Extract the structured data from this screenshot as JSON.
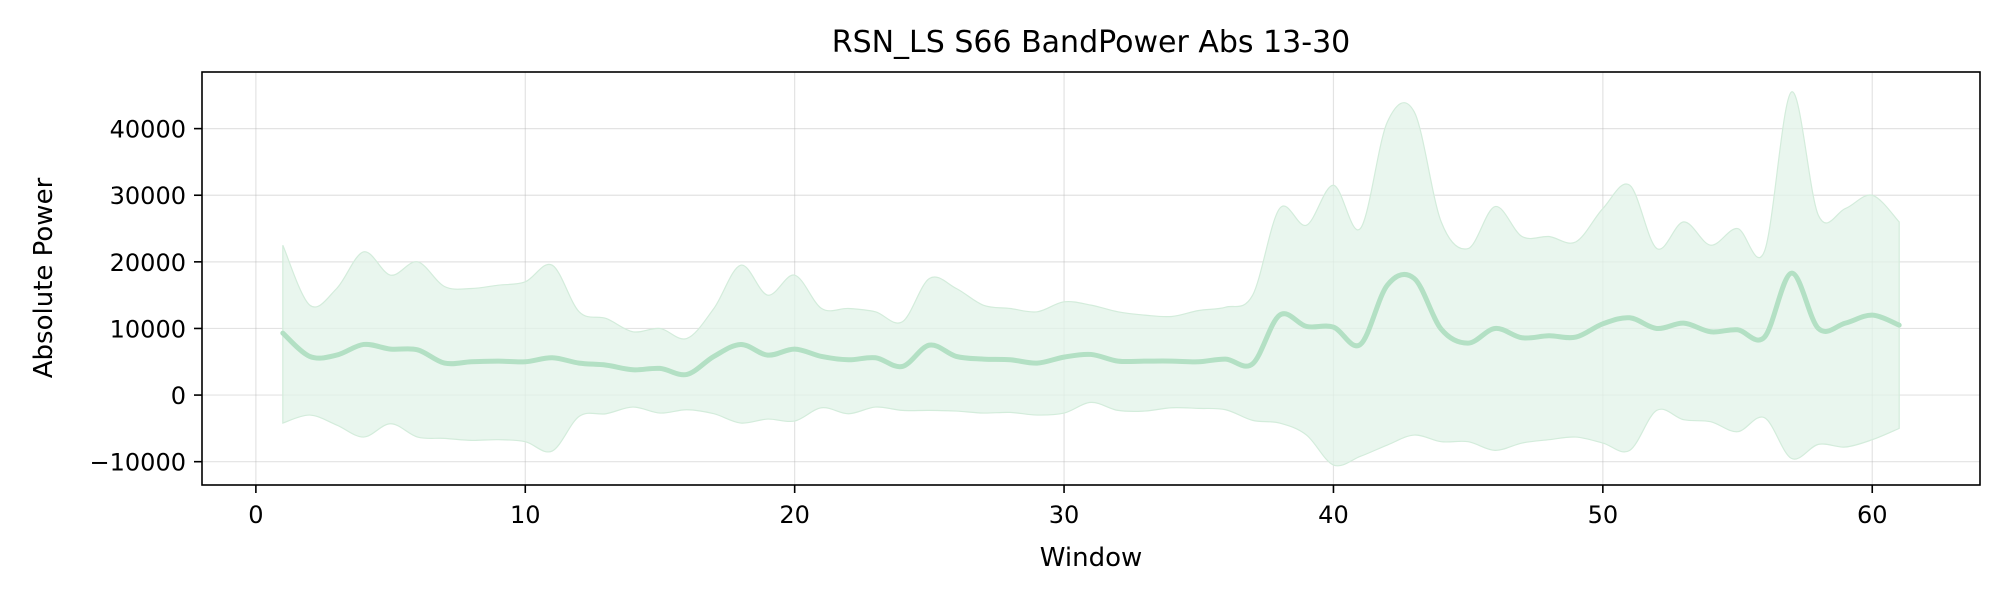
{
  "chart_data": {
    "type": "line",
    "title": "RSN_LS S66 BandPower Abs 13-30",
    "xlabel": "Window",
    "ylabel": "Absolute Power",
    "xlim": [
      -2,
      64
    ],
    "ylim": [
      -13500,
      48500
    ],
    "xticks": [
      0,
      10,
      20,
      30,
      40,
      50,
      60
    ],
    "yticks": [
      -10000,
      0,
      10000,
      20000,
      30000,
      40000
    ],
    "ytick_labels": [
      "−10000",
      "0",
      "10000",
      "20000",
      "30000",
      "40000"
    ],
    "grid": true,
    "colors": {
      "line": "#b3e0c4",
      "band": "#e2f3e8",
      "band_edge": "#d3ecdb"
    },
    "series": [
      {
        "x": [
          1,
          2,
          3,
          4,
          5,
          6,
          7,
          8,
          9,
          10,
          11,
          12,
          13,
          14,
          15,
          16,
          17,
          18,
          19,
          20,
          21,
          22,
          23,
          24,
          25,
          26,
          27,
          28,
          29,
          30,
          31,
          32,
          33,
          34,
          35,
          36,
          37,
          38,
          39,
          40,
          41,
          42,
          43,
          44,
          45,
          46,
          47,
          48,
          49,
          50,
          51,
          52,
          53,
          54,
          55,
          56,
          57,
          58,
          59,
          60,
          61
        ],
        "mean": [
          9300,
          5800,
          6000,
          7600,
          6900,
          6800,
          4800,
          5000,
          5100,
          5000,
          5600,
          4800,
          4500,
          3800,
          4000,
          3100,
          5800,
          7600,
          6000,
          6900,
          5800,
          5300,
          5600,
          4300,
          7500,
          5800,
          5400,
          5300,
          4800,
          5700,
          6100,
          5100,
          5100,
          5100,
          5000,
          5400,
          4700,
          12000,
          10300,
          10200,
          7600,
          16500,
          17500,
          9900,
          7800,
          10000,
          8600,
          8900,
          8700,
          10700,
          11600,
          10000,
          10800,
          9500,
          9800,
          8700,
          18300,
          10000,
          10800,
          12000,
          10500
        ],
        "upper": [
          22500,
          13500,
          16000,
          21500,
          18000,
          20000,
          16300,
          16000,
          16500,
          17000,
          19500,
          12500,
          11500,
          9500,
          10000,
          8500,
          13000,
          19500,
          15000,
          18000,
          13000,
          13000,
          12500,
          11000,
          17500,
          16000,
          13500,
          13000,
          12500,
          14000,
          13500,
          12500,
          12000,
          11800,
          12700,
          13200,
          15000,
          28000,
          25500,
          31500,
          25000,
          41000,
          42500,
          26000,
          22000,
          28300,
          23800,
          23800,
          23000,
          28000,
          31500,
          22000,
          26000,
          22500,
          25000,
          21600,
          45500,
          27000,
          28000,
          30000,
          26000
        ],
        "lower": [
          -4200,
          -3000,
          -4500,
          -6300,
          -4300,
          -6300,
          -6500,
          -6800,
          -6700,
          -7000,
          -8400,
          -3200,
          -2800,
          -1800,
          -2700,
          -2200,
          -2800,
          -4200,
          -3600,
          -3900,
          -1900,
          -2800,
          -1800,
          -2300,
          -2300,
          -2400,
          -2700,
          -2600,
          -3000,
          -2700,
          -1100,
          -2300,
          -2400,
          -1900,
          -2000,
          -2200,
          -3800,
          -4200,
          -6000,
          -10500,
          -9200,
          -7500,
          -6000,
          -7000,
          -7000,
          -8300,
          -7200,
          -6700,
          -6300,
          -7200,
          -8300,
          -2300,
          -3700,
          -4000,
          -5500,
          -3400,
          -9500,
          -7400,
          -7800,
          -6700,
          -5000
        ]
      }
    ]
  }
}
